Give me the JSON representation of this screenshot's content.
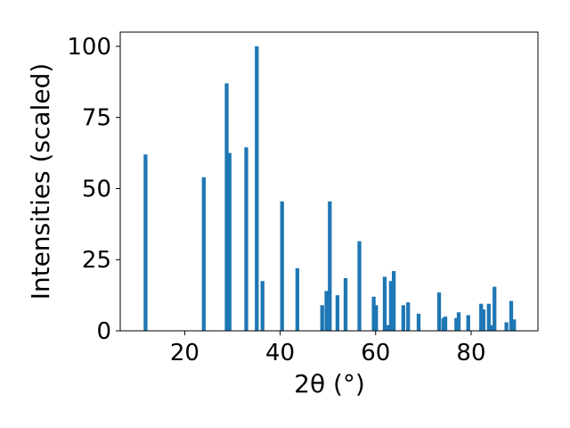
{
  "chart_data": {
    "type": "bar",
    "xlabel": "2θ (°)",
    "ylabel": "Intensities (scaled)",
    "xlim": [
      6.5,
      94.0
    ],
    "ylim": [
      0,
      105
    ],
    "xticks": [
      20,
      40,
      60,
      80
    ],
    "yticks": [
      0,
      25,
      50,
      75,
      100
    ],
    "bar_width_units": 0.8,
    "color": "#1f77b4",
    "grid": false,
    "legend": "none",
    "x": [
      11.8,
      24.0,
      28.8,
      29.4,
      32.9,
      35.1,
      36.3,
      40.4,
      43.6,
      48.8,
      49.7,
      50.4,
      52.0,
      53.7,
      56.6,
      59.6,
      60.1,
      61.9,
      62.6,
      63.2,
      63.8,
      65.8,
      66.8,
      69.0,
      73.3,
      74.2,
      74.6,
      76.9,
      77.4,
      79.4,
      82.1,
      82.6,
      83.7,
      84.2,
      84.9,
      87.4,
      88.4,
      89.0
    ],
    "values": [
      62,
      54,
      87,
      62.5,
      64.5,
      100,
      17.5,
      45.5,
      22,
      9,
      14,
      45.5,
      12.5,
      18.5,
      31.5,
      12,
      9,
      19,
      2,
      17.5,
      21,
      9,
      10,
      6,
      13.5,
      4.5,
      5,
      4.5,
      6.5,
      5.5,
      9.5,
      7.5,
      9.5,
      2,
      15.5,
      3,
      10.5,
      4
    ]
  }
}
